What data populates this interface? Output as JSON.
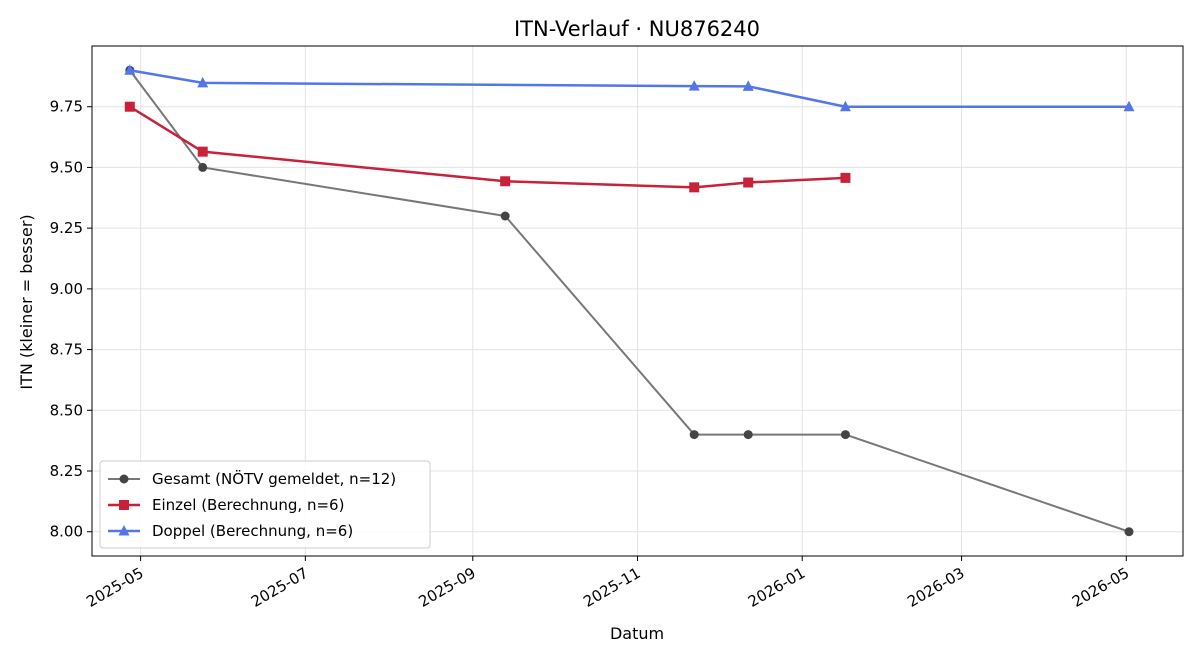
{
  "chart_data": {
    "type": "line",
    "title": "ITN-Verlauf · NU876240",
    "xlabel": "Datum",
    "ylabel": "ITN  (kleiner = besser)",
    "x_is_date": true,
    "xlim": [
      "2025-04-13",
      "2026-05-22"
    ],
    "ylim": [
      7.9,
      10.0
    ],
    "yticks": [
      8.0,
      8.25,
      8.5,
      8.75,
      9.0,
      9.25,
      9.5,
      9.75
    ],
    "ytick_labels": [
      "8.00",
      "8.25",
      "8.50",
      "8.75",
      "9.00",
      "9.25",
      "9.50",
      "9.75"
    ],
    "xticks": [
      "2025-05-01",
      "2025-07-01",
      "2025-09-01",
      "2025-11-01",
      "2026-01-01",
      "2026-03-01",
      "2026-05-01"
    ],
    "xtick_labels": [
      "2025-05",
      "2025-07",
      "2025-09",
      "2025-11",
      "2026-01",
      "2026-03",
      "2026-05"
    ],
    "grid": true,
    "legend_position": "lower-left",
    "series": [
      {
        "name": "Gesamt (NÖTV gemeldet, n=12)",
        "color": "#777777",
        "marker_color": "#444444",
        "marker": "circle",
        "x": [
          "2025-04-27",
          "2025-05-24",
          "2025-09-13",
          "2025-11-22",
          "2025-12-12",
          "2026-01-17",
          "2026-05-02"
        ],
        "y": [
          9.9,
          9.5,
          9.3,
          8.4,
          8.4,
          8.4,
          8.0
        ]
      },
      {
        "name": "Einzel (Berechnung, n=6)",
        "color": "#c8213a",
        "marker": "square",
        "x": [
          "2025-04-27",
          "2025-05-24",
          "2025-09-13",
          "2025-11-22",
          "2025-12-12",
          "2026-01-17"
        ],
        "y": [
          9.75,
          9.565,
          9.443,
          9.418,
          9.438,
          9.457
        ]
      },
      {
        "name": "Doppel (Berechnung, n=6)",
        "color": "#5476e8",
        "marker": "triangle",
        "x": [
          "2025-04-27",
          "2025-05-24",
          "2025-11-22",
          "2025-12-12",
          "2026-01-17",
          "2026-05-02"
        ],
        "y": [
          9.9,
          9.848,
          9.835,
          9.834,
          9.75,
          9.75
        ]
      }
    ]
  }
}
